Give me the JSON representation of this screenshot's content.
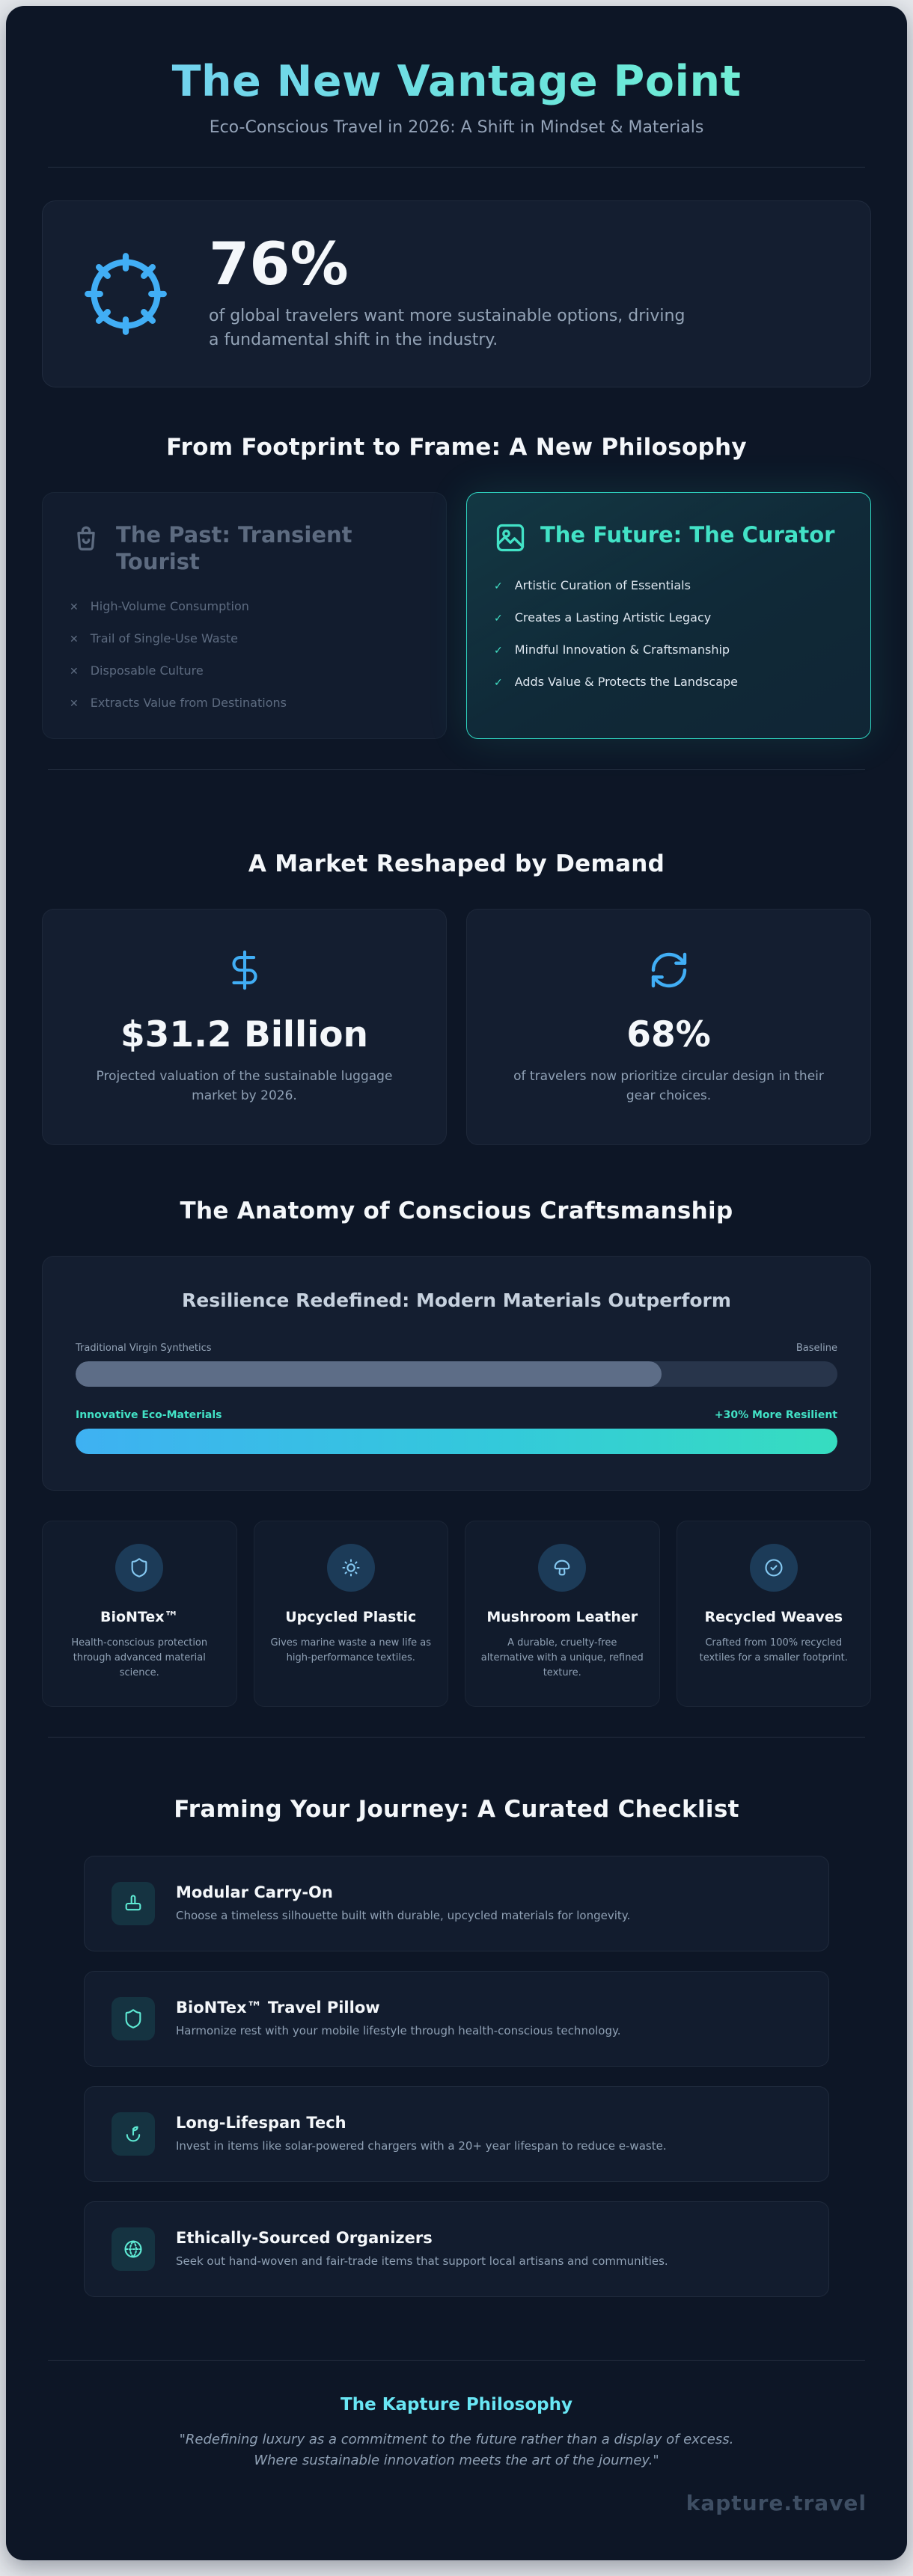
{
  "page": {
    "title": "The New Vantage Point",
    "subtitle": "Eco-Conscious Travel in 2026: A Shift in Mindset & Materials",
    "watermark": "kapture.travel"
  },
  "colors": {
    "background": "#0d1626",
    "accent_blue": "#41aef5",
    "accent_teal": "#42e2c6",
    "accent_cyan": "#69e6f4",
    "text_muted": "#94a3b8",
    "bar_gray": "#5d6d87",
    "bar_gradient_start": "#3eb1f2",
    "bar_gradient_end": "#36ddc0"
  },
  "hero": {
    "value": "76%",
    "description": "of global travelers want more sustainable options, driving a fundamental shift in the industry.",
    "icon": "compass-ring-icon"
  },
  "philosophy": {
    "heading": "From Footprint to Frame: A New Philosophy",
    "past": {
      "title": "The Past: Transient Tourist",
      "icon": "travel-bag-icon",
      "marker": "✕",
      "items": [
        "High-Volume Consumption",
        "Trail of Single-Use Waste",
        "Disposable Culture",
        "Extracts Value from Destinations"
      ]
    },
    "future": {
      "title": "The Future: The Curator",
      "icon": "picture-frame-icon",
      "marker": "✓",
      "items": [
        "Artistic Curation of Essentials",
        "Creates a Lasting Artistic Legacy",
        "Mindful Innovation & Craftsmanship",
        "Adds Value & Protects the Landscape"
      ]
    }
  },
  "market": {
    "heading": "A Market Reshaped by Demand",
    "stats": [
      {
        "icon": "dollar-icon",
        "value": "$31.2 Billion",
        "description": "Projected valuation of the sustainable luggage market by 2026."
      },
      {
        "icon": "circular-arrows-icon",
        "value": "68%",
        "description": "of travelers now prioritize circular design in their gear choices."
      }
    ]
  },
  "craftsmanship": {
    "heading": "The Anatomy of Conscious Craftsmanship",
    "materials": [
      {
        "icon": "shield-icon",
        "name": "BioNTex™",
        "description": "Health-conscious protection through advanced material science."
      },
      {
        "icon": "sun-icon",
        "name": "Upcycled Plastic",
        "description": "Gives marine waste a new life as high-performance textiles."
      },
      {
        "icon": "mushroom-icon",
        "name": "Mushroom Leather",
        "description": "A durable, cruelty-free alternative with a unique, refined texture."
      },
      {
        "icon": "check-circle-icon",
        "name": "Recycled Weaves",
        "description": "Crafted from 100% recycled textiles for a smaller footprint."
      }
    ]
  },
  "chart_data": {
    "type": "bar",
    "orientation": "horizontal",
    "title": "Resilience Redefined: Modern Materials Outperform",
    "categories": [
      "Traditional Virgin Synthetics",
      "Innovative Eco-Materials"
    ],
    "values": [
      100,
      130
    ],
    "value_labels": [
      "Baseline",
      "+30% More Resilient"
    ],
    "xlim": [
      0,
      130
    ],
    "grid": false,
    "legend": false
  },
  "checklist": {
    "heading": "Framing Your Journey: A Curated Checklist",
    "items": [
      {
        "icon": "luggage-icon",
        "title": "Modular Carry-On",
        "description": "Choose a timeless silhouette built with durable, upcycled materials for longevity."
      },
      {
        "icon": "shield-icon",
        "title": "BioNTex™ Travel Pillow",
        "description": "Harmonize rest with your mobile lifestyle through health-conscious technology."
      },
      {
        "icon": "sprout-hand-icon",
        "title": "Long-Lifespan Tech",
        "description": "Invest in items like solar-powered chargers with a 20+ year lifespan to reduce e-waste."
      },
      {
        "icon": "globe-icon",
        "title": "Ethically-Sourced Organizers",
        "description": "Seek out hand-woven and fair-trade items that support local artisans and communities."
      }
    ]
  },
  "footer": {
    "title": "The Kapture Philosophy",
    "quote": "\"Redefining luxury as a commitment to the future rather than a display of excess. Where sustainable innovation meets the art of the journey.\""
  }
}
